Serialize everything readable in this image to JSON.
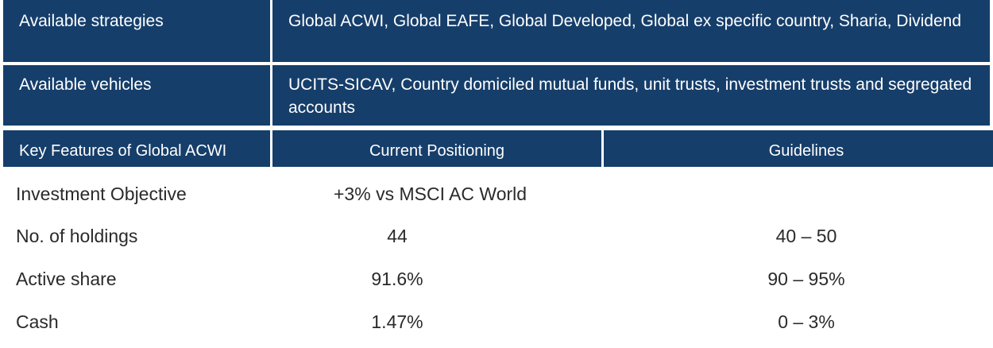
{
  "top_rows": [
    {
      "label": "Available strategies",
      "value": "Global ACWI, Global EAFE, Global Developed, Global ex specific country, Sharia, Dividend"
    },
    {
      "label": "Available vehicles",
      "value": "UCITS-SICAV, Country domiciled mutual funds, unit trusts, investment trusts and segregated accounts"
    }
  ],
  "header": {
    "col1": "Key Features of Global ACWI",
    "col2": "Current Positioning",
    "col3": "Guidelines"
  },
  "rows": [
    {
      "label": "Investment Objective",
      "current": "+3% vs MSCI AC World",
      "guideline": ""
    },
    {
      "label": "No. of holdings",
      "current": "44",
      "guideline": "40 – 50"
    },
    {
      "label": "Active share",
      "current": "91.6%",
      "guideline": "90 – 95%"
    },
    {
      "label": "Cash",
      "current": "1.47%",
      "guideline": "0 – 3%"
    }
  ],
  "colors": {
    "header_bg": "#163e6a",
    "header_text": "#ffffff",
    "body_text": "#2a2a2a"
  }
}
